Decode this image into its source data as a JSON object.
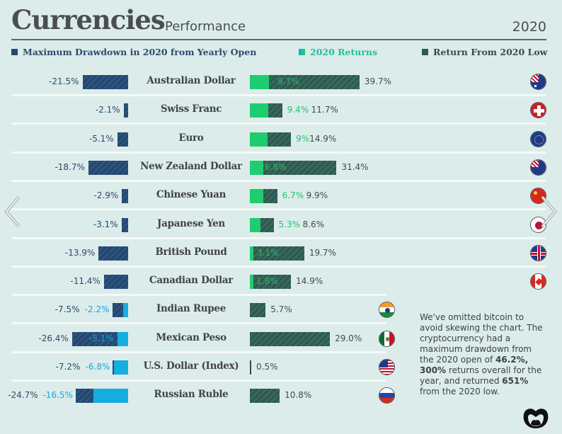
{
  "header": {
    "title": "Currencies",
    "subtitle": "Performance",
    "year": "2020"
  },
  "legend": {
    "drawdown": {
      "label": "Maximum Drawdown in 2020 from Yearly Open",
      "color": "#24486f"
    },
    "returns": {
      "label": "2020 Returns",
      "color": "#1fcc6f"
    },
    "from_low": {
      "label": "Return From 2020 Low",
      "color": "#2e5a4f"
    }
  },
  "colors": {
    "drawdown_navy": "#24486f",
    "drawdown_blue": "#14aee0",
    "returns_green": "#1fcc6f",
    "low_darkgreen": "#2e5a4f",
    "background": "#dcecea"
  },
  "rows": [
    {
      "name": "Australian Dollar",
      "drawdown": "-21.5%",
      "drawdown2": "",
      "returns": "9.7%",
      "from_low": "39.7%",
      "flag": "australia-flag-icon"
    },
    {
      "name": "Swiss Franc",
      "drawdown": "-2.1%",
      "drawdown2": "",
      "returns": "9.4%",
      "from_low": "11.7%",
      "flag": "switzerland-flag-icon"
    },
    {
      "name": "Euro",
      "drawdown": "-5.1%",
      "drawdown2": "",
      "returns": "9%",
      "from_low": "14.9%",
      "flag": "eu-flag-icon"
    },
    {
      "name": "New Zealand Dollar",
      "drawdown": "-18.7%",
      "drawdown2": "",
      "returns": "6.8%",
      "from_low": "31.4%",
      "flag": "new-zealand-flag-icon"
    },
    {
      "name": "Chinese Yuan",
      "drawdown": "-2.9%",
      "drawdown2": "",
      "returns": "6.7%",
      "from_low": "9.9%",
      "flag": "china-flag-icon"
    },
    {
      "name": "Japanese Yen",
      "drawdown": "-3.1%",
      "drawdown2": "",
      "returns": "5.3%",
      "from_low": "8.6%",
      "flag": "japan-flag-icon"
    },
    {
      "name": "British Pound",
      "drawdown": "-13.9%",
      "drawdown2": "",
      "returns": "3.1%",
      "from_low": "19.7%",
      "flag": "uk-flag-icon"
    },
    {
      "name": "Canadian Dollar",
      "drawdown": "-11.4%",
      "drawdown2": "",
      "returns": "1.8%",
      "from_low": "14.9%",
      "flag": "canada-flag-icon"
    },
    {
      "name": "Indian Rupee",
      "drawdown": "-7.5%",
      "drawdown2": "-2.2%",
      "returns": "",
      "from_low": "5.7%",
      "flag": "india-flag-icon"
    },
    {
      "name": "Mexican Peso",
      "drawdown": "-26.4%",
      "drawdown2": "-5.1%",
      "returns": "",
      "from_low": "29.0%",
      "flag": "mexico-flag-icon"
    },
    {
      "name": "U.S. Dollar (Index)",
      "drawdown": "-7.2%",
      "drawdown2": "-6.8%",
      "returns": "",
      "from_low": "0.5%",
      "flag": "usa-flag-icon"
    },
    {
      "name": "Russian Ruble",
      "drawdown": "-24.7%",
      "drawdown2": "-16.5%",
      "returns": "",
      "from_low": "10.8%",
      "flag": "russia-flag-icon"
    }
  ],
  "note": {
    "p1": "We've omitted bitcoin to avoid skewing the chart. The cryptocurrency had a maximum drawdown from the 2020 open of ",
    "b1": "46.2%,",
    "p2": " ",
    "b2": "300%",
    "p3": " returns overall for the year, and returned ",
    "b3": "651%",
    "p4": " from the 2020 low."
  },
  "nav": {
    "prev": "previous-arrow",
    "next": "next-arrow"
  },
  "chart_data": {
    "type": "bar",
    "title": "Currencies Performance 2020",
    "categories": [
      "Australian Dollar",
      "Swiss Franc",
      "Euro",
      "New Zealand Dollar",
      "Chinese Yuan",
      "Japanese Yen",
      "British Pound",
      "Canadian Dollar",
      "Indian Rupee",
      "Mexican Peso",
      "U.S. Dollar (Index)",
      "Russian Ruble"
    ],
    "series": [
      {
        "name": "Maximum Drawdown in 2020 from Yearly Open",
        "values": [
          -21.5,
          -2.1,
          -5.1,
          -18.7,
          -2.9,
          -3.1,
          -13.9,
          -11.4,
          -7.5,
          -26.4,
          -7.2,
          -24.7
        ]
      },
      {
        "name": "2020 Returns",
        "values": [
          9.7,
          9.4,
          9.0,
          6.8,
          6.7,
          5.3,
          3.1,
          1.8,
          -2.2,
          -5.1,
          -6.8,
          -16.5
        ]
      },
      {
        "name": "Return From 2020 Low",
        "values": [
          39.7,
          11.7,
          14.9,
          31.4,
          9.9,
          8.6,
          19.7,
          14.9,
          5.7,
          29.0,
          0.5,
          10.8
        ]
      }
    ],
    "xlabel": "",
    "ylabel": "",
    "legend_position": "top",
    "grid": false,
    "annotations": [
      "We've omitted bitcoin to avoid skewing the chart. The cryptocurrency had a maximum drawdown from the 2020 open of 46.2%, 300% returns overall for the year, and returned 651% from the 2020 low."
    ]
  }
}
